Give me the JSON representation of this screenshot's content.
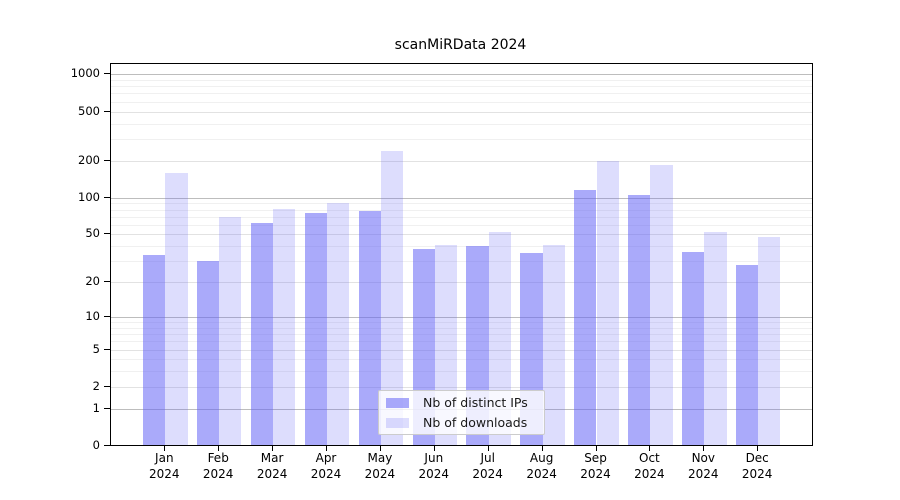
{
  "chart_data": {
    "type": "bar",
    "title": "scanMiRData 2024",
    "categories": [
      "Jan",
      "Feb",
      "Mar",
      "Apr",
      "May",
      "Jun",
      "Jul",
      "Aug",
      "Sep",
      "Oct",
      "Nov",
      "Dec"
    ],
    "x_year_label": "2024",
    "series": [
      {
        "name": "Nb of distinct IPs",
        "color": "rgba(100,100,245,0.55)",
        "values": [
          34,
          30,
          62,
          75,
          78,
          38,
          40,
          35,
          115,
          105,
          36,
          28
        ]
      },
      {
        "name": "Nb of downloads",
        "color": "rgba(100,100,245,0.22)",
        "values": [
          160,
          70,
          81,
          91,
          240,
          41,
          52,
          41,
          200,
          185,
          52,
          48
        ]
      }
    ],
    "y_ticks": [
      0,
      1,
      2,
      5,
      10,
      20,
      50,
      100,
      200,
      500,
      1000
    ],
    "y_major_ticks": [
      1,
      10,
      100,
      1000
    ],
    "y_minor_gridlines": [
      3,
      4,
      6,
      7,
      8,
      9,
      30,
      40,
      60,
      70,
      80,
      90,
      300,
      400,
      600,
      700,
      800,
      900
    ],
    "y_scale": "pseudo-log: log10(value+1)",
    "ylim": [
      0,
      1000
    ],
    "grid": "horizontal",
    "legend_position": "bottom-center-inside"
  }
}
